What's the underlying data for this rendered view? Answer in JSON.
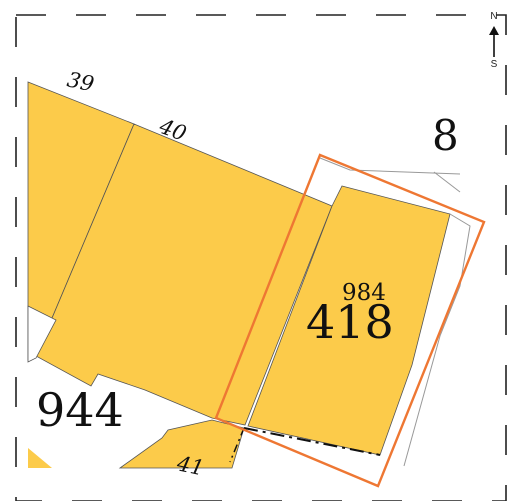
{
  "compass": {
    "north_label": "N",
    "south_label": "S"
  },
  "parcel_labels": {
    "p39": "39",
    "p40": "40",
    "p8": "8",
    "p984": "984",
    "p418": "418",
    "p944": "944",
    "p41": "41"
  },
  "colors": {
    "parcel_fill": "#fccb4a",
    "parcel_outline": "#333333",
    "selection_outline": "#ee7733",
    "frame_dash": "#222222",
    "neighbor_lines": "#999999"
  }
}
